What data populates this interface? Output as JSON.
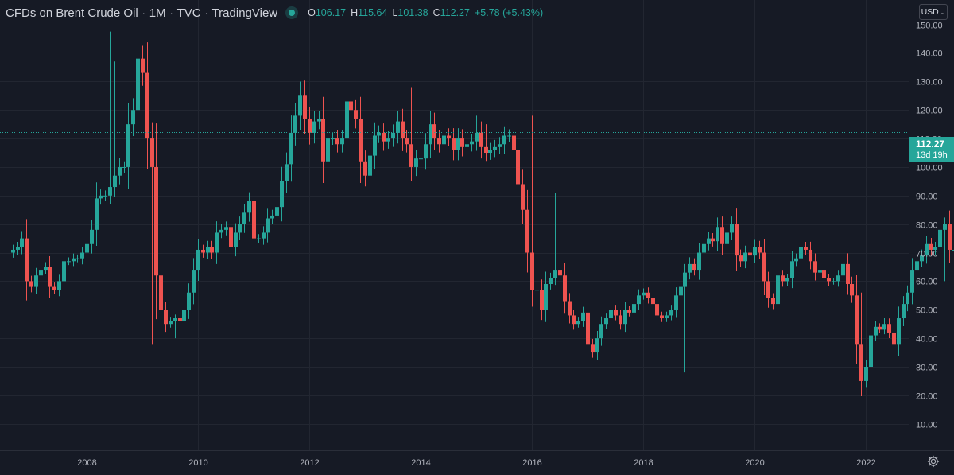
{
  "legend": {
    "title": "CFDs on Brent Crude Oil",
    "timeframe": "1M",
    "exchange": "TVC",
    "source": "TradingView",
    "open_label": "O",
    "open": "106.17",
    "high_label": "H",
    "high": "115.64",
    "low_label": "L",
    "low": "101.38",
    "close_label": "C",
    "close": "112.27",
    "change": "+5.78 (+5.43%)"
  },
  "currency": "USD",
  "price_tag": {
    "price": "112.27",
    "countdown": "13d 19h"
  },
  "colors": {
    "background": "#161a25",
    "grid": "#222631",
    "up": "#26a69a",
    "down": "#ef5350",
    "axis_text": "#b2b5be",
    "last_price_line": "#26a69a"
  },
  "icons": {
    "settings": "gear-icon",
    "live": "live-dot-icon",
    "dropdown": "chevron-down-icon"
  },
  "chart_data": {
    "type": "candlestick",
    "interval": "1M",
    "x_start": "2006-09",
    "ylim": [
      0,
      155
    ],
    "y_ticks": [
      10,
      20,
      30,
      40,
      50,
      60,
      70,
      80,
      90,
      100,
      110,
      120,
      130,
      140,
      150
    ],
    "y_tick_labels": [
      "10.00",
      "20.00",
      "30.00",
      "40.00",
      "50.00",
      "60.00",
      "70.00",
      "80.00",
      "90.00",
      "100.00",
      "110.00",
      "120.00",
      "130.00",
      "140.00",
      "150.00"
    ],
    "x_ticks": [
      "2008",
      "2010",
      "2012",
      "2014",
      "2016",
      "2018",
      "2020",
      "2022"
    ],
    "last_price": 112.27,
    "grid": true,
    "closes": [
      71,
      72,
      75,
      60,
      58,
      62,
      64,
      65,
      58,
      57,
      60,
      67,
      67,
      68,
      68,
      70,
      73,
      78,
      89,
      90,
      90,
      93,
      97,
      100,
      100,
      115,
      120,
      138,
      133,
      110,
      100,
      62,
      50,
      45,
      46,
      47,
      46,
      50,
      56,
      64,
      71,
      70,
      72,
      70,
      77,
      78,
      79,
      72,
      77,
      80,
      84,
      88,
      75,
      75,
      77,
      82,
      83,
      86,
      95,
      101,
      112,
      118,
      125,
      117,
      112,
      116,
      117,
      102,
      110,
      110,
      108,
      110,
      123,
      120,
      117,
      102,
      97,
      104,
      111,
      112,
      109,
      110,
      112,
      116,
      110,
      108,
      100,
      103,
      103,
      108,
      115,
      110,
      108,
      111,
      110,
      106,
      110,
      107,
      108,
      109,
      112,
      107,
      105,
      106,
      107,
      108,
      111,
      111,
      106,
      94,
      85,
      70,
      57,
      57,
      50,
      59,
      61,
      64,
      62,
      53,
      48,
      45,
      46,
      49,
      38,
      35,
      40,
      45,
      47,
      50,
      48,
      45,
      50,
      49,
      52,
      55,
      56,
      54,
      52,
      48,
      47,
      48,
      50,
      55,
      58,
      63,
      66,
      64,
      70,
      73,
      75,
      74,
      79,
      73,
      77,
      80,
      69,
      67,
      70,
      69,
      72,
      70,
      60,
      54,
      52,
      62,
      60,
      61,
      67,
      68,
      72,
      71,
      67,
      63,
      64,
      61,
      60,
      60,
      62,
      66,
      59,
      55,
      38,
      25,
      30,
      41,
      44,
      43,
      45,
      42,
      38,
      47,
      52,
      56,
      64,
      67,
      69,
      73,
      71,
      72,
      78,
      80,
      71,
      71,
      78,
      89,
      100,
      106,
      112
    ]
  }
}
